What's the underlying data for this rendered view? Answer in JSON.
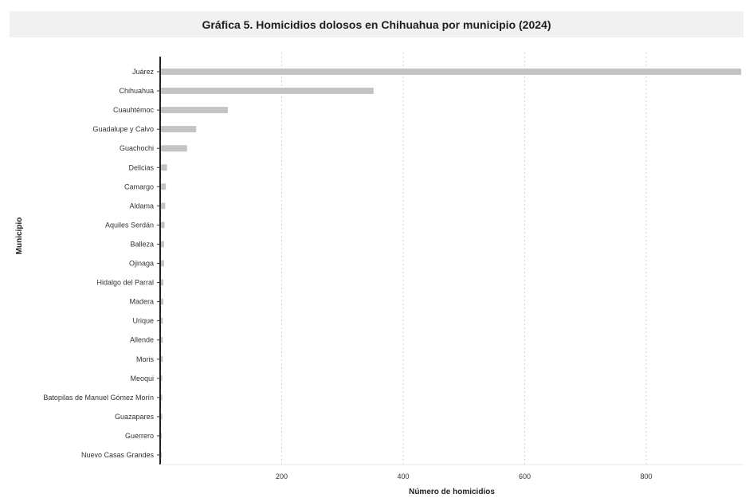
{
  "chart_data": {
    "type": "bar",
    "orientation": "horizontal",
    "title": "Gráfica 5. Homicidios dolosos en Chihuahua por municipio (2024)",
    "xlabel": "Número de homicidios",
    "ylabel": "Municipio",
    "xlim": [
      0,
      960
    ],
    "xticks": [
      200,
      400,
      600,
      800
    ],
    "grid": "vertical dashed",
    "categories": [
      "Juárez",
      "Chihuahua",
      "Cuauhtémoc",
      "Guadalupe y Calvo",
      "Guachochi",
      "Delicias",
      "Camargo",
      "Aldama",
      "Aquiles Serdán",
      "Balleza",
      "Ojinaga",
      "Hidalgo del Parral",
      "Madera",
      "Urique",
      "Allende",
      "Moris",
      "Meoqui",
      "Batopilas de Manuel Gómez Morín",
      "Guazapares",
      "Guerrero",
      "Nuevo Casas Grandes"
    ],
    "values": [
      955,
      350,
      110,
      58,
      43,
      10,
      8,
      7,
      6,
      5,
      5,
      4,
      4,
      3,
      3,
      3,
      2,
      2,
      2,
      1,
      1
    ],
    "bar_color": "#c4c4c4"
  }
}
